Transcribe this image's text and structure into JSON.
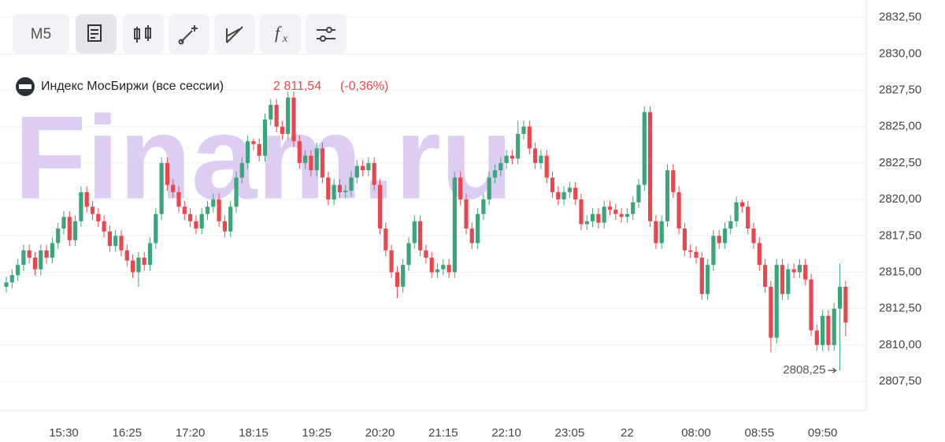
{
  "toolbar": {
    "timeframe": "M5"
  },
  "legend": {
    "name": "Индекс МосБиржи (все сессии)",
    "price": "2 811,54",
    "change": "(-0,36%)"
  },
  "watermark": "Finam.ru",
  "chart_data": {
    "type": "candlestick",
    "up_color": "#3aa57a",
    "down_color": "#e9474f",
    "grid": true,
    "ylim": [
      2805.5,
      2833.7
    ],
    "yticks": [
      {
        "value": 2807.5,
        "label": "2807,50"
      },
      {
        "value": 2810,
        "label": "2810,00"
      },
      {
        "value": 2812.5,
        "label": "2812,50"
      },
      {
        "value": 2815,
        "label": "2815,00"
      },
      {
        "value": 2817.5,
        "label": "2817,50"
      },
      {
        "value": 2820,
        "label": "2820,00"
      },
      {
        "value": 2822.5,
        "label": "2822,50"
      },
      {
        "value": 2825,
        "label": "2825,00"
      },
      {
        "value": 2827.5,
        "label": "2827,50"
      },
      {
        "value": 2830,
        "label": "2830,00"
      },
      {
        "value": 2832.5,
        "label": "2832,50"
      }
    ],
    "categories": [
      null,
      null,
      null,
      null,
      null,
      null,
      null,
      null,
      null,
      null,
      "15:30",
      null,
      null,
      null,
      null,
      null,
      null,
      null,
      null,
      null,
      null,
      "16:25",
      null,
      null,
      null,
      null,
      null,
      null,
      null,
      null,
      null,
      null,
      "17:20",
      null,
      null,
      null,
      null,
      null,
      null,
      null,
      null,
      null,
      null,
      "18:15",
      null,
      null,
      null,
      null,
      null,
      null,
      null,
      null,
      null,
      null,
      "19:25",
      null,
      null,
      null,
      null,
      null,
      null,
      null,
      null,
      null,
      null,
      "20:20",
      null,
      null,
      null,
      null,
      null,
      null,
      null,
      null,
      null,
      null,
      "21:15",
      null,
      null,
      null,
      null,
      null,
      null,
      null,
      null,
      null,
      null,
      "22:10",
      null,
      null,
      null,
      null,
      null,
      null,
      null,
      null,
      null,
      null,
      "23:05",
      null,
      null,
      null,
      null,
      null,
      null,
      null,
      null,
      null,
      "22",
      null,
      null,
      null,
      null,
      null,
      null,
      null,
      null,
      null,
      null,
      null,
      "08:00",
      null,
      null,
      null,
      null,
      null,
      null,
      null,
      null,
      null,
      null,
      "08:55",
      null,
      null,
      null,
      null,
      null,
      null,
      null,
      null,
      null,
      null,
      "09:50",
      null,
      null,
      null,
      null
    ],
    "open": [
      2814.0,
      2814.3,
      2814.8,
      2815.5,
      2816.5,
      2816.0,
      2815.2,
      2816.5,
      2816.0,
      2817.0,
      2818.0,
      2818.8,
      2817.2,
      2818.5,
      2820.5,
      2819.5,
      2819.0,
      2818.5,
      2817.8,
      2816.8,
      2817.5,
      2816.5,
      2815.8,
      2815.0,
      2816.0,
      2815.5,
      2817.0,
      2819.0,
      2822.5,
      2821.0,
      2820.5,
      2819.5,
      2819.0,
      2818.5,
      2818.0,
      2819.0,
      2819.5,
      2820.0,
      2818.5,
      2817.8,
      2819.5,
      2821.5,
      2822.5,
      2824.0,
      2823.8,
      2823.0,
      2825.5,
      2826.5,
      2825.0,
      2824.5,
      2827.0,
      2824.0,
      2822.5,
      2823.0,
      2822.0,
      2823.5,
      2821.5,
      2820.0,
      2821.0,
      2820.5,
      2820.6,
      2821.5,
      2822.3,
      2822.0,
      2822.5,
      2821.0,
      2818.0,
      2816.5,
      2815.0,
      2814.0,
      2815.5,
      2817.0,
      2818.5,
      2816.5,
      2816.0,
      2815.0,
      2815.2,
      2815.5,
      2815.0,
      2821.5,
      2820.0,
      2818.0,
      2817.0,
      2819.0,
      2820.0,
      2821.5,
      2822.0,
      2822.5,
      2823.0,
      2822.8,
      2824.5,
      2825.0,
      2823.5,
      2822.5,
      2823.0,
      2821.5,
      2820.5,
      2820.0,
      2820.5,
      2820.8,
      2820.0,
      2818.3,
      2818.5,
      2819.0,
      2818.4,
      2819.5,
      2819.3,
      2819.0,
      2818.8,
      2819.0,
      2819.8,
      2821.0,
      2826.0,
      2818.5,
      2817.0,
      2818.5,
      2822.0,
      2820.5,
      2818.0,
      2816.5,
      2816.4,
      2816.0,
      2813.5,
      2815.5,
      2817.5,
      2817.0,
      2818.0,
      2818.5,
      2819.8,
      2819.5,
      2818.0,
      2817.0,
      2815.5,
      2814.0,
      2810.5,
      2815.5,
      2813.5,
      2815.2,
      2815.0,
      2815.5,
      2814.5,
      2811.0,
      2810.0,
      2812.0,
      2810.0,
      2812.5,
      2814.0
    ],
    "high": [
      2814.7,
      2815.2,
      2815.9,
      2816.9,
      2816.9,
      2816.4,
      2816.9,
      2816.9,
      2817.4,
      2818.4,
      2819.2,
      2819.2,
      2818.9,
      2820.9,
      2820.9,
      2819.9,
      2819.4,
      2818.9,
      2818.2,
      2817.9,
      2817.9,
      2816.9,
      2816.2,
      2816.4,
      2816.4,
      2817.4,
      2819.4,
      2822.9,
      2822.9,
      2821.4,
      2820.9,
      2819.9,
      2819.4,
      2818.9,
      2819.4,
      2819.9,
      2820.4,
      2820.4,
      2818.9,
      2819.9,
      2821.9,
      2822.9,
      2824.4,
      2824.2,
      2824.2,
      2825.9,
      2826.9,
      2826.9,
      2825.4,
      2827.4,
      2827.4,
      2824.4,
      2823.4,
      2823.4,
      2823.9,
      2823.9,
      2821.9,
      2821.4,
      2821.4,
      2821.0,
      2821.9,
      2822.7,
      2822.7,
      2822.9,
      2822.9,
      2821.4,
      2818.4,
      2816.9,
      2815.4,
      2815.9,
      2817.4,
      2818.9,
      2818.9,
      2816.9,
      2816.4,
      2815.6,
      2815.9,
      2815.9,
      2821.9,
      2821.9,
      2820.4,
      2818.4,
      2819.4,
      2820.4,
      2821.9,
      2822.4,
      2822.9,
      2823.4,
      2823.4,
      2825.4,
      2825.4,
      2825.4,
      2823.9,
      2823.4,
      2823.4,
      2821.9,
      2820.9,
      2820.9,
      2821.2,
      2821.2,
      2820.4,
      2818.9,
      2819.4,
      2819.4,
      2819.9,
      2819.9,
      2819.7,
      2819.4,
      2819.4,
      2820.2,
      2821.4,
      2826.4,
      2826.4,
      2818.9,
      2818.9,
      2822.4,
      2822.4,
      2820.9,
      2818.4,
      2816.9,
      2816.8,
      2816.4,
      2815.9,
      2817.9,
      2817.9,
      2818.4,
      2818.9,
      2820.2,
      2820.0,
      2819.9,
      2818.4,
      2817.4,
      2815.9,
      2814.4,
      2815.9,
      2815.9,
      2815.6,
      2815.6,
      2815.9,
      2815.9,
      2814.9,
      2811.4,
      2812.4,
      2812.4,
      2812.9,
      2815.6,
      2814.4
    ],
    "low": [
      2813.6,
      2813.9,
      2814.4,
      2815.1,
      2815.6,
      2814.8,
      2814.8,
      2815.6,
      2815.6,
      2816.6,
      2817.6,
      2816.8,
      2816.8,
      2818.1,
      2819.1,
      2818.6,
      2818.1,
      2817.4,
      2816.4,
      2816.4,
      2816.1,
      2815.4,
      2814.6,
      2814.0,
      2815.1,
      2815.1,
      2816.6,
      2818.6,
      2820.6,
      2820.1,
      2819.1,
      2818.6,
      2818.1,
      2817.6,
      2817.6,
      2818.6,
      2819.1,
      2818.1,
      2817.4,
      2817.4,
      2819.1,
      2821.1,
      2822.1,
      2823.4,
      2822.6,
      2822.6,
      2825.1,
      2824.6,
      2824.1,
      2824.1,
      2823.6,
      2822.1,
      2822.1,
      2821.6,
      2821.6,
      2821.1,
      2819.6,
      2819.6,
      2820.1,
      2820.1,
      2820.2,
      2821.1,
      2821.6,
      2821.6,
      2820.6,
      2817.6,
      2816.1,
      2814.6,
      2813.2,
      2813.6,
      2815.1,
      2816.6,
      2816.1,
      2815.6,
      2814.6,
      2814.6,
      2814.8,
      2814.6,
      2814.6,
      2819.6,
      2817.6,
      2816.6,
      2816.6,
      2818.6,
      2819.6,
      2821.1,
      2821.6,
      2822.1,
      2822.4,
      2822.4,
      2824.1,
      2823.1,
      2822.1,
      2822.1,
      2821.1,
      2820.1,
      2819.6,
      2819.6,
      2820.1,
      2819.6,
      2817.9,
      2817.9,
      2818.1,
      2818.0,
      2818.0,
      2818.9,
      2818.6,
      2818.4,
      2818.4,
      2818.6,
      2819.4,
      2820.6,
      2818.1,
      2816.6,
      2816.6,
      2818.1,
      2820.1,
      2817.6,
      2816.1,
      2816.0,
      2815.6,
      2813.1,
      2813.1,
      2815.1,
      2816.6,
      2816.6,
      2817.6,
      2818.1,
      2819.1,
      2817.6,
      2816.6,
      2815.1,
      2813.6,
      2809.5,
      2810.1,
      2813.1,
      2813.1,
      2814.6,
      2814.6,
      2814.1,
      2810.6,
      2809.6,
      2809.6,
      2809.6,
      2809.6,
      2808.25,
      2810.6
    ],
    "close": [
      2814.3,
      2814.8,
      2815.5,
      2816.5,
      2816.0,
      2815.2,
      2816.5,
      2816.0,
      2817.0,
      2818.0,
      2818.8,
      2817.2,
      2818.5,
      2820.5,
      2819.5,
      2819.0,
      2818.5,
      2817.8,
      2816.8,
      2817.5,
      2816.5,
      2815.8,
      2815.0,
      2816.0,
      2815.5,
      2817.0,
      2819.0,
      2822.5,
      2821.0,
      2820.5,
      2819.5,
      2819.0,
      2818.5,
      2818.0,
      2819.0,
      2819.5,
      2820.0,
      2818.5,
      2817.8,
      2819.5,
      2821.5,
      2822.5,
      2824.0,
      2823.8,
      2823.0,
      2825.5,
      2826.5,
      2825.0,
      2824.5,
      2827.0,
      2824.0,
      2822.5,
      2823.0,
      2822.0,
      2823.5,
      2821.5,
      2820.0,
      2821.0,
      2820.5,
      2820.6,
      2821.5,
      2822.3,
      2822.0,
      2822.5,
      2821.0,
      2818.0,
      2816.5,
      2815.0,
      2814.0,
      2815.5,
      2817.0,
      2818.5,
      2816.5,
      2816.0,
      2815.0,
      2815.2,
      2815.5,
      2815.0,
      2821.5,
      2820.0,
      2818.0,
      2817.0,
      2819.0,
      2820.0,
      2821.5,
      2822.0,
      2822.5,
      2823.0,
      2822.8,
      2824.5,
      2825.0,
      2823.5,
      2822.5,
      2823.0,
      2821.5,
      2820.5,
      2820.0,
      2820.5,
      2820.8,
      2820.0,
      2818.3,
      2818.5,
      2819.0,
      2818.4,
      2819.5,
      2819.3,
      2819.0,
      2818.8,
      2819.0,
      2819.8,
      2821.0,
      2826.0,
      2818.5,
      2817.0,
      2818.5,
      2822.0,
      2820.5,
      2818.0,
      2816.5,
      2816.4,
      2816.0,
      2813.5,
      2815.5,
      2817.5,
      2817.0,
      2818.0,
      2818.5,
      2819.8,
      2819.5,
      2818.0,
      2817.0,
      2815.5,
      2814.0,
      2810.5,
      2815.5,
      2813.5,
      2815.2,
      2815.0,
      2815.5,
      2814.5,
      2811.0,
      2810.0,
      2812.0,
      2810.0,
      2812.5,
      2814.0,
      2811.54
    ],
    "annotations": [
      {
        "text": "2808,25",
        "index": 145,
        "value": 2808.25
      }
    ]
  }
}
